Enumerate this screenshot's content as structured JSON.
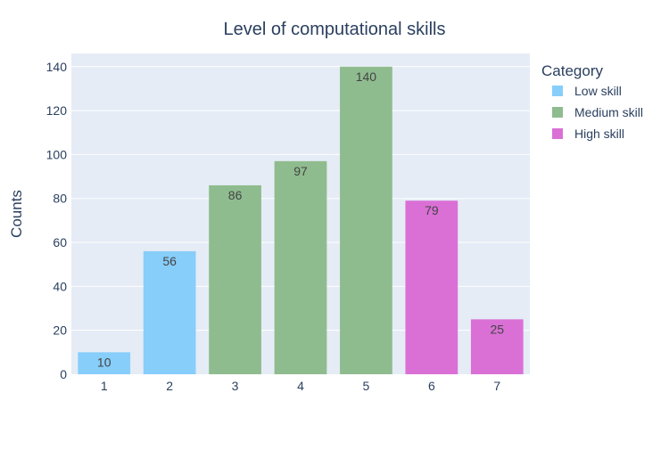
{
  "chart_data": {
    "type": "bar",
    "title": "Level of computational skills",
    "xlabel": "",
    "ylabel": "Counts",
    "categories": [
      "1",
      "2",
      "3",
      "4",
      "5",
      "6",
      "7"
    ],
    "values": [
      10,
      56,
      86,
      97,
      140,
      79,
      25
    ],
    "bar_groups": [
      "Low skill",
      "Low skill",
      "Medium skill",
      "Medium skill",
      "Medium skill",
      "High skill",
      "High skill"
    ],
    "ylim": [
      0,
      146
    ],
    "yticks": [
      0,
      20,
      40,
      60,
      80,
      100,
      120,
      140
    ],
    "grid": true,
    "legend": {
      "title": "Category",
      "placement": "right",
      "entries": [
        {
          "name": "Low skill",
          "color": "#87CEFA"
        },
        {
          "name": "Medium skill",
          "color": "#8FBC8F"
        },
        {
          "name": "High skill",
          "color": "#DA70D6"
        }
      ]
    },
    "colors": {
      "plot_background": "#E5ECF6",
      "gridline": "#FFFFFF",
      "text": "#2A3F5F",
      "data_label": "#444444"
    }
  }
}
